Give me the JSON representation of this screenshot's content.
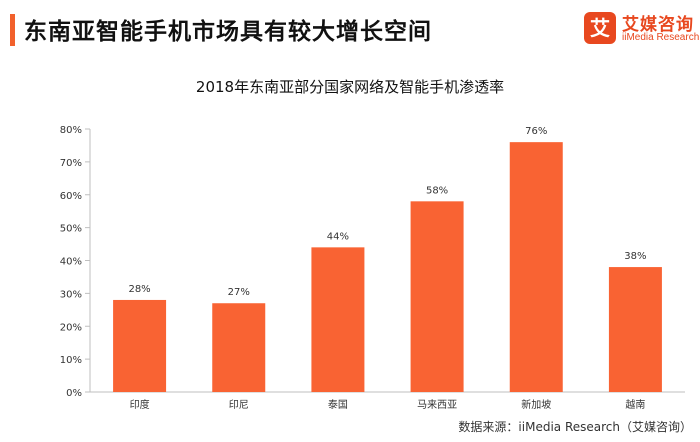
{
  "header": {
    "title": "东南亚智能手机市场具有较大增长空间",
    "accent_color": "#f2612c"
  },
  "logo": {
    "mark": "艾",
    "name_cn": "艾媒咨询",
    "name_en": "iiMedia Research",
    "color": "#e8481f"
  },
  "chart_data": {
    "type": "bar",
    "title": "2018年东南亚部分国家网络及智能手机渗透率",
    "categories": [
      "印度",
      "印尼",
      "泰国",
      "马来西亚",
      "新加坡",
      "越南"
    ],
    "values": [
      28,
      27,
      44,
      58,
      76,
      38
    ],
    "value_labels": [
      "28%",
      "27%",
      "44%",
      "58%",
      "76%",
      "38%"
    ],
    "ylim": [
      0,
      80
    ],
    "yticks": [
      0,
      10,
      20,
      30,
      40,
      50,
      60,
      70,
      80
    ],
    "ytick_labels": [
      "0%",
      "10%",
      "20%",
      "30%",
      "40%",
      "50%",
      "60%",
      "70%",
      "80%"
    ],
    "grid": false,
    "bar_color": "#f96333",
    "xlabel": "",
    "ylabel": ""
  },
  "footer": {
    "source": "数据来源：iiMedia Research（艾媒咨询）"
  }
}
